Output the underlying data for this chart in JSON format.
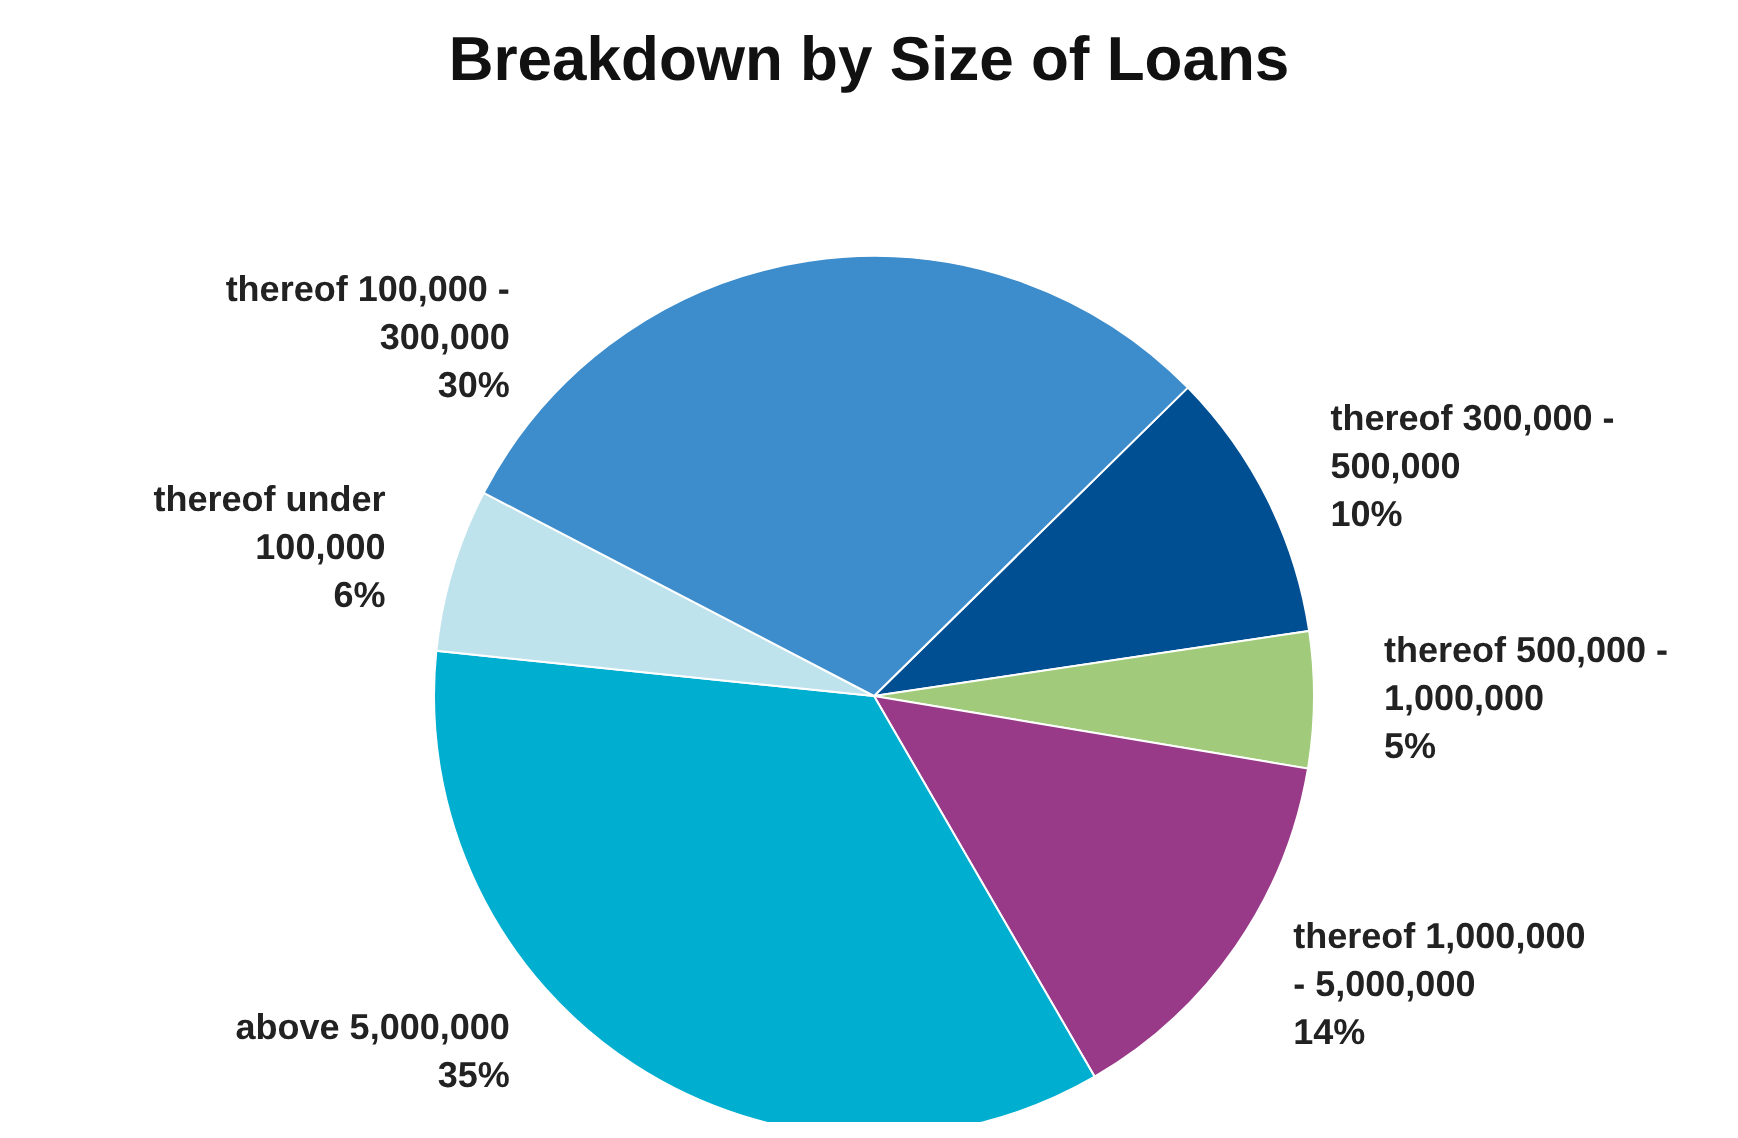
{
  "chart_data": {
    "type": "pie",
    "title": "Breakdown by Size of Loans",
    "categories": [
      "thereof 300,000 - 500,000",
      "thereof 500,000 - 1,000,000",
      "thereof 1,000,000 - 5,000,000",
      "above 5,000,000",
      "thereof under 100,000",
      "thereof 100,000 - 300,000"
    ],
    "values": [
      10,
      5,
      14,
      35,
      6,
      30
    ],
    "colors": [
      "#004f93",
      "#a1cb7a",
      "#993a89",
      "#00aed0",
      "#bfe3ed",
      "#3d8ccb"
    ],
    "value_labels": [
      "10%",
      "5%",
      "14%",
      "35%",
      "6%",
      "30%"
    ]
  }
}
